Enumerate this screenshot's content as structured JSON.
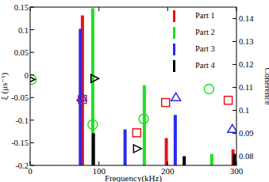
{
  "chart_data": {
    "type": "bar",
    "x_label": "Frequency(kHz)",
    "y_label": "ξ (μs⁻¹)",
    "y2_label": "Coherence",
    "xlim": [
      0,
      300
    ],
    "xticks": [
      0,
      100,
      200,
      300
    ],
    "ylim": [
      -0.2,
      0.15
    ],
    "yticks": [
      -0.2,
      -0.15,
      -0.1,
      -0.05,
      0,
      0.05,
      0.1,
      0.15
    ],
    "y2lim": [
      0.076,
      0.145
    ],
    "y2ticks": [
      0.08,
      0.09,
      0.1,
      0.11,
      0.12,
      0.13,
      0.14
    ],
    "grid": false,
    "legend": "top-right",
    "series": [
      {
        "name": "Part 1",
        "type": "bar",
        "axis": "y2",
        "color": "#e3141c",
        "x": [
          76,
          198,
          295
        ],
        "values": [
          0.1414,
          0.0879,
          0.083
        ]
      },
      {
        "name": "Part 2",
        "type": "bar",
        "axis": "y2",
        "color": "#22dd22",
        "x": [
          91,
          166,
          264
        ],
        "values": [
          0.1445,
          0.111,
          0.081
        ]
      },
      {
        "name": "Part 3",
        "type": "bar",
        "axis": "y2",
        "color": "#2a2aee",
        "x": [
          73,
          138,
          211
        ],
        "values": [
          0.1355,
          0.0917,
          0.098
        ]
      },
      {
        "name": "Part 4",
        "type": "bar",
        "axis": "y2",
        "color": "#000000",
        "x": [
          92,
          224,
          297
        ],
        "values": [
          0.09,
          0.08,
          0.081
        ]
      },
      {
        "type": "scatter",
        "marker": "square",
        "color": "#e3141c",
        "x": [
          76,
          155,
          197,
          288
        ],
        "values": [
          -0.054,
          -0.128,
          -0.061,
          -0.056
        ]
      },
      {
        "type": "scatter",
        "marker": "circle",
        "color": "#22dd22",
        "x": [
          2,
          91,
          165,
          260
        ],
        "values": [
          -0.01,
          -0.11,
          -0.097,
          -0.031
        ]
      },
      {
        "type": "scatter",
        "marker": "triangle",
        "color": "#2a2aee",
        "x": [
          75,
          212,
          294
        ],
        "values": [
          -0.05,
          -0.05,
          -0.12
        ]
      },
      {
        "type": "scatter",
        "marker": "triangle-right",
        "color": "#000000",
        "x": [
          0,
          93,
          155
        ],
        "values": [
          -0.01,
          -0.008,
          -0.163
        ]
      }
    ]
  }
}
